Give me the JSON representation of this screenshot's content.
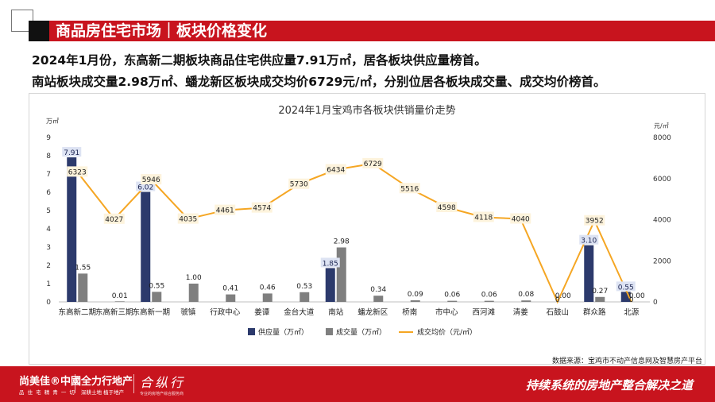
{
  "header": {
    "title": "商品房住宅市场｜板块价格变化",
    "summary_line1": "2024年1月份，东高新二期板块商品住宅供应量7.91万㎡，居各板块供应量榜首。",
    "summary_line2": "南站板块成交量2.98万㎡、蟠龙新区板块成交均价6729元/㎡，分别位居各板块成交量、成交均价榜首。"
  },
  "colors": {
    "brand_red": "#c8141e",
    "supply_bar": "#2c3a6c",
    "volume_bar": "#7f7f7f",
    "price_line": "#f5a623"
  },
  "chart_data": {
    "type": "bar",
    "title": "2024年1月宝鸡市各板块供销量价走势",
    "categories": [
      "东高新二期",
      "东高新三期",
      "东高新一期",
      "虢镇",
      "行政中心",
      "姜谭",
      "金台大道",
      "南站",
      "蟠龙新区",
      "桥南",
      "市中心",
      "西河滩",
      "清姜",
      "石鼓山",
      "群众路",
      "北源"
    ],
    "series": [
      {
        "name": "供应量（万㎡）",
        "axis": "left",
        "chart": "bar",
        "values": [
          7.91,
          0,
          6.02,
          0,
          0,
          0,
          0,
          1.85,
          0,
          0,
          0,
          0,
          0,
          0,
          3.1,
          0.55
        ]
      },
      {
        "name": "成交量（万㎡）",
        "axis": "left",
        "chart": "bar",
        "values": [
          1.55,
          0.01,
          0.55,
          1.0,
          0.41,
          0.46,
          0.53,
          2.98,
          0.34,
          0.09,
          0.06,
          0.06,
          0.08,
          0.0,
          0.27,
          0.0
        ]
      },
      {
        "name": "成交均价（元/㎡）",
        "axis": "right",
        "chart": "line",
        "values": [
          6323,
          4027,
          5946,
          4035,
          4461,
          4574,
          5730,
          6434,
          6729,
          5516,
          4598,
          4118,
          4040,
          0,
          3952,
          0
        ]
      }
    ],
    "supply_labels": [
      "7.91",
      "",
      "6.02",
      "",
      "",
      "",
      "",
      "1.85",
      "",
      "",
      "",
      "",
      "",
      "",
      "3.10",
      "0.55"
    ],
    "volume_labels": [
      "1.55",
      "0.01",
      "0.55",
      "1.00",
      "0.41",
      "0.46",
      "0.53",
      "2.98",
      "0.34",
      "0.09",
      "0.06",
      "0.06",
      "0.08",
      "0.00",
      "0.27",
      "0.00"
    ],
    "price_labels": [
      "6323",
      "4027",
      "5946",
      "4035",
      "4461",
      "4574",
      "5730",
      "6434",
      "6729",
      "5516",
      "4598",
      "4118",
      "4040",
      "0",
      "3952",
      "0"
    ],
    "y_left": {
      "unit": "万㎡",
      "min": 0,
      "max": 9,
      "ticks": [
        "0",
        "1",
        "2",
        "3",
        "4",
        "5",
        "6",
        "7",
        "8",
        "9"
      ]
    },
    "y_right": {
      "unit": "元/㎡",
      "min": 0,
      "max": 8000,
      "ticks": [
        "0",
        "2000",
        "4000",
        "6000",
        "8000"
      ]
    },
    "legend_position": "bottom",
    "grid": false
  },
  "source_note": "数据来源：宝鸡市不动产信息网及智慧房产平台",
  "footer": {
    "logo1_main": "尚美佳®中國",
    "logo1_sub": "品 住 宅 精 青 一 切",
    "logo2_main": "全力行地产",
    "logo2_sub": "深耕土地 植于地产",
    "logo3_main": "合纵行",
    "logo3_sub": "专业的房地产综合服务商",
    "slogan": "持续系统的房地产整合解决之道"
  }
}
